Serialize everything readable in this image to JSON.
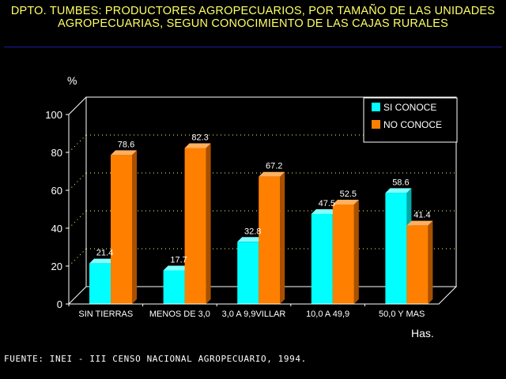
{
  "title_line1": "DPTO. TUMBES: PRODUCTORES AGROPECUARIOS, POR TAMAÑO DE LAS UNIDADES",
  "title_line2": "AGROPECUARIAS, SEGUN CONOCIMIENTO DE LAS CAJAS RURALES",
  "source": "FUENTE: INEI - III CENSO NACIONAL AGROPECUARIO, 1994.",
  "colors": {
    "series1": "#00ffff",
    "series2": "#ff8000",
    "title": "#ffff66",
    "grid": "#ffff66"
  },
  "chart_data": {
    "type": "bar",
    "title": "DPTO. TUMBES: PRODUCTORES AGROPECUARIOS, POR TAMAÑO DE LAS UNIDADES AGROPECUARIAS, SEGUN CONOCIMIENTO DE LAS CAJAS RURALES",
    "ylabel": "%",
    "xlabel": "Has.",
    "ylim": [
      0,
      100
    ],
    "yticks": [
      0,
      20,
      40,
      60,
      80,
      100
    ],
    "grid": true,
    "legend_position": "top-right",
    "categories": [
      "SIN TIERRAS",
      "MENOS DE 3,0",
      "3,0 A 9,9VILLAR",
      "10,0 A 49,9",
      "50,0 Y MAS"
    ],
    "series": [
      {
        "name": "SI CONOCE",
        "values": [
          21.4,
          17.7,
          32.8,
          47.5,
          58.6
        ]
      },
      {
        "name": "NO CONOCE",
        "values": [
          78.6,
          82.3,
          67.2,
          52.5,
          41.4
        ]
      }
    ],
    "data_labels": [
      [
        "21.4",
        "17.7",
        "32.8",
        "47.5",
        "58.6"
      ],
      [
        "78.6",
        "82.3",
        "67.2",
        "52.5",
        "41.4"
      ]
    ]
  }
}
